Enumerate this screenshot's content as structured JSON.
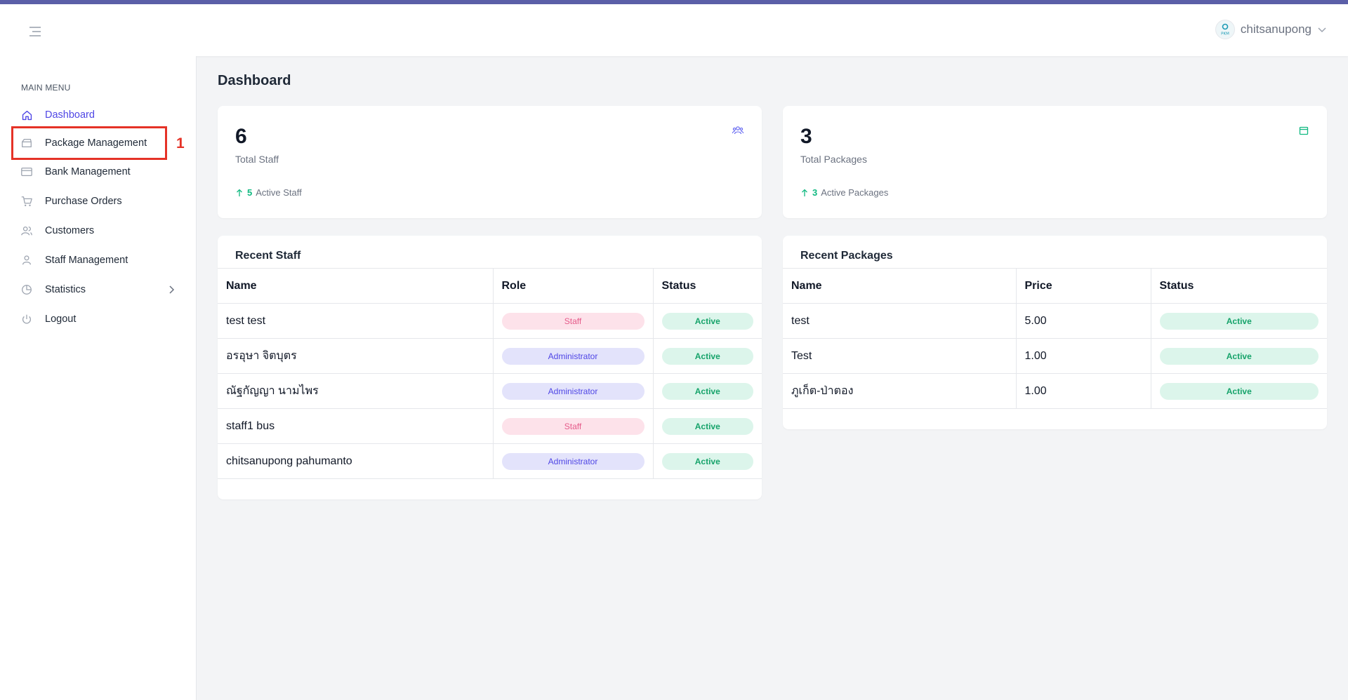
{
  "header": {
    "username": "chitsanupong",
    "avatar_text": "PKM"
  },
  "sidebar": {
    "heading": "MAIN MENU",
    "items": [
      {
        "label": "Dashboard",
        "icon": "home-icon"
      },
      {
        "label": "Package Management",
        "icon": "package-icon"
      },
      {
        "label": "Bank Management",
        "icon": "credit-card-icon"
      },
      {
        "label": "Purchase Orders",
        "icon": "shopping-cart-icon"
      },
      {
        "label": "Customers",
        "icon": "users-icon"
      },
      {
        "label": "Staff Management",
        "icon": "user-icon"
      },
      {
        "label": "Statistics",
        "icon": "pie-chart-icon"
      },
      {
        "label": "Logout",
        "icon": "power-icon"
      }
    ]
  },
  "annotation": {
    "number": "1"
  },
  "page": {
    "title": "Dashboard"
  },
  "stats": {
    "staff": {
      "value": "6",
      "label": "Total Staff",
      "foot_value": "5",
      "foot_label": "Active Staff"
    },
    "packages": {
      "value": "3",
      "label": "Total Packages",
      "foot_value": "3",
      "foot_label": "Active Packages"
    }
  },
  "recent_staff": {
    "title": "Recent Staff",
    "columns": [
      "Name",
      "Role",
      "Status"
    ],
    "rows": [
      {
        "name": "test test",
        "role": "Staff",
        "status": "Active"
      },
      {
        "name": "อรอุษา จิตบุตร",
        "role": "Administrator",
        "status": "Active"
      },
      {
        "name": "ณัฐกัญญา นามไพร",
        "role": "Administrator",
        "status": "Active"
      },
      {
        "name": "staff1 bus",
        "role": "Staff",
        "status": "Active"
      },
      {
        "name": "chitsanupong pahumanto",
        "role": "Administrator",
        "status": "Active"
      }
    ]
  },
  "recent_packages": {
    "title": "Recent Packages",
    "columns": [
      "Name",
      "Price",
      "Status"
    ],
    "rows": [
      {
        "name": "test",
        "price": "5.00",
        "status": "Active"
      },
      {
        "name": "Test",
        "price": "1.00",
        "status": "Active"
      },
      {
        "name": "ภูเก็ต-ป่าตอง",
        "price": "1.00",
        "status": "Active"
      }
    ]
  },
  "colors": {
    "accent": "#4f46e5",
    "success": "#10b981",
    "highlight": "#e53227",
    "top_strip": "#5b5fa8"
  }
}
